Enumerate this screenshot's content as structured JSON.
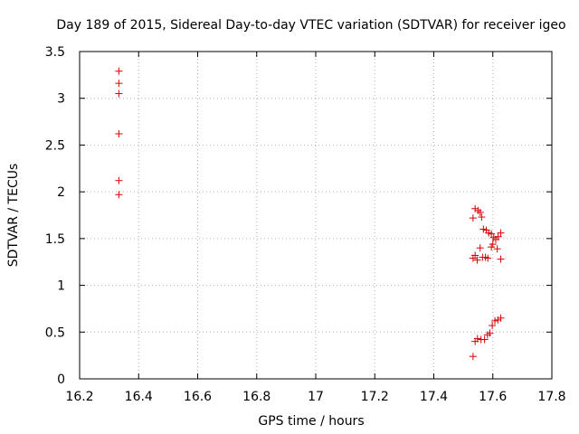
{
  "chart_data": {
    "type": "scatter",
    "title": "Day 189 of 2015, Sidereal Day-to-day VTEC variation (SDTVAR) for receiver igeo",
    "xlabel": "GPS time / hours",
    "ylabel": "SDTVAR / TECUs",
    "xlim": [
      16.2,
      17.8
    ],
    "ylim": [
      0,
      3.5
    ],
    "x_ticks": [
      "16.2",
      "16.4",
      "16.6",
      "16.8",
      "17",
      "17.2",
      "17.4",
      "17.6",
      "17.8"
    ],
    "y_ticks": [
      "0",
      "0.5",
      "1",
      "1.5",
      "2",
      "2.5",
      "3",
      "3.5"
    ],
    "grid": true,
    "marker": "+",
    "marker_color": "#d40000",
    "series": [
      {
        "name": "SDTVAR",
        "points": [
          [
            16.333,
            3.29
          ],
          [
            16.333,
            3.16
          ],
          [
            16.333,
            3.05
          ],
          [
            16.333,
            2.62
          ],
          [
            16.333,
            2.12
          ],
          [
            16.333,
            1.97
          ],
          [
            17.533,
            1.72
          ],
          [
            17.54,
            1.82
          ],
          [
            17.55,
            1.8
          ],
          [
            17.557,
            1.78
          ],
          [
            17.562,
            1.73
          ],
          [
            17.568,
            1.6
          ],
          [
            17.578,
            1.59
          ],
          [
            17.586,
            1.56
          ],
          [
            17.595,
            1.55
          ],
          [
            17.603,
            1.51
          ],
          [
            17.61,
            1.49
          ],
          [
            17.618,
            1.52
          ],
          [
            17.627,
            1.56
          ],
          [
            17.595,
            1.41
          ],
          [
            17.6,
            1.44
          ],
          [
            17.557,
            1.4
          ],
          [
            17.615,
            1.39
          ],
          [
            17.533,
            1.29
          ],
          [
            17.54,
            1.32
          ],
          [
            17.547,
            1.27
          ],
          [
            17.565,
            1.3
          ],
          [
            17.575,
            1.3
          ],
          [
            17.583,
            1.29
          ],
          [
            17.627,
            1.28
          ],
          [
            17.533,
            0.24
          ],
          [
            17.54,
            0.4
          ],
          [
            17.548,
            0.43
          ],
          [
            17.56,
            0.42
          ],
          [
            17.572,
            0.42
          ],
          [
            17.582,
            0.47
          ],
          [
            17.59,
            0.49
          ],
          [
            17.598,
            0.57
          ],
          [
            17.607,
            0.62
          ],
          [
            17.617,
            0.63
          ],
          [
            17.627,
            0.65
          ]
        ]
      }
    ]
  }
}
